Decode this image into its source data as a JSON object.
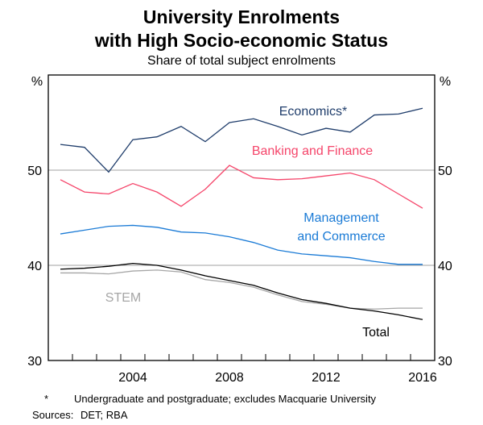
{
  "chart_data": {
    "type": "line",
    "title": "University Enrolments with High Socio-economic Status",
    "title_lines": [
      "University Enrolments",
      "with High Socio-economic Status"
    ],
    "subtitle": "Share of total subject enrolments",
    "ylabel": "%",
    "ylim": [
      30,
      60
    ],
    "yticks": [
      30,
      40,
      50
    ],
    "xlim": [
      2001,
      2017
    ],
    "xtick_labels": [
      "2004",
      "2008",
      "2012",
      "2016"
    ],
    "grid": "horizontal at 40 and 50",
    "x": [
      2001,
      2002,
      2003,
      2004,
      2005,
      2006,
      2007,
      2008,
      2009,
      2010,
      2011,
      2012,
      2013,
      2014,
      2015,
      2016
    ],
    "series": [
      {
        "name": "Economics*",
        "color": "#1f3d6b",
        "values": [
          52.7,
          52.4,
          49.8,
          53.2,
          53.5,
          54.6,
          53.0,
          55.0,
          55.4,
          54.6,
          53.7,
          54.4,
          54.0,
          55.8,
          55.9,
          56.5
        ]
      },
      {
        "name": "Banking and Finance",
        "color": "#f5456a",
        "values": [
          49.0,
          47.7,
          47.5,
          48.6,
          47.7,
          46.2,
          48.0,
          50.5,
          49.2,
          49.0,
          49.1,
          49.4,
          49.7,
          49.0,
          47.5,
          46.0
        ]
      },
      {
        "name": "Management and Commerce",
        "color": "#1b7bd6",
        "values": [
          43.3,
          43.7,
          44.1,
          44.2,
          44.0,
          43.5,
          43.4,
          43.0,
          42.4,
          41.6,
          41.2,
          41.0,
          40.8,
          40.4,
          40.1,
          40.1
        ]
      },
      {
        "name": "STEM",
        "color": "#a6a6a6",
        "values": [
          39.2,
          39.2,
          39.1,
          39.4,
          39.5,
          39.3,
          38.5,
          38.2,
          37.7,
          36.9,
          36.2,
          35.9,
          35.5,
          35.4,
          35.5,
          35.5
        ]
      },
      {
        "name": "Total",
        "color": "#000000",
        "values": [
          39.6,
          39.7,
          39.9,
          40.2,
          40.0,
          39.5,
          38.9,
          38.4,
          37.9,
          37.1,
          36.4,
          36.0,
          35.5,
          35.2,
          34.8,
          34.3
        ]
      }
    ],
    "labels": {
      "economics": "Economics*",
      "banking": "Banking and Finance",
      "management_1": "Management",
      "management_2": "and Commerce",
      "stem": "STEM",
      "total": "Total"
    }
  },
  "footnote": {
    "marker": "*",
    "text": "Undergraduate and postgraduate; excludes Macquarie University"
  },
  "sources": {
    "label": "Sources:",
    "text": "DET; RBA"
  }
}
